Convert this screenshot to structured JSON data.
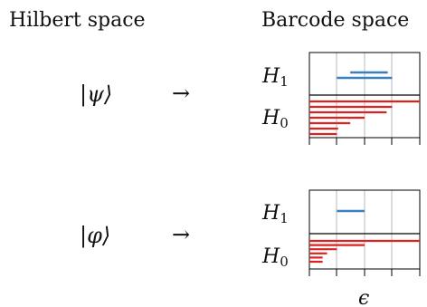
{
  "headers": {
    "hilbert": "Hilbert space",
    "barcode": "Barcode space"
  },
  "arrow": "→",
  "epsilon_label": "ϵ",
  "colors": {
    "h1_bars": "#3a80c0",
    "h0_bars": "#dd2020",
    "grid": "#b8b8b8",
    "frame": "#000000"
  },
  "rows": [
    {
      "state": "|ψ⟩",
      "h1": {
        "label": "H",
        "sub": "1"
      },
      "h0": {
        "label": "H",
        "sub": "0"
      },
      "h1_bars": [
        [
          0.37,
          0.71
        ],
        [
          0.25,
          0.75
        ]
      ],
      "h0_bars": [
        [
          0.0,
          1.0
        ],
        [
          0.0,
          0.75
        ],
        [
          0.0,
          0.7
        ],
        [
          0.0,
          0.5
        ],
        [
          0.0,
          0.37
        ],
        [
          0.0,
          0.26
        ],
        [
          0.0,
          0.25
        ]
      ]
    },
    {
      "state": "|φ⟩",
      "h1": {
        "label": "H",
        "sub": "1"
      },
      "h0": {
        "label": "H",
        "sub": "0"
      },
      "h1_bars": [
        [
          0.25,
          0.5
        ]
      ],
      "h0_bars": [
        [
          0.0,
          1.0
        ],
        [
          0.0,
          0.5
        ],
        [
          0.0,
          0.25
        ],
        [
          0.0,
          0.16
        ],
        [
          0.0,
          0.12
        ],
        [
          0.0,
          0.12
        ]
      ]
    }
  ]
}
